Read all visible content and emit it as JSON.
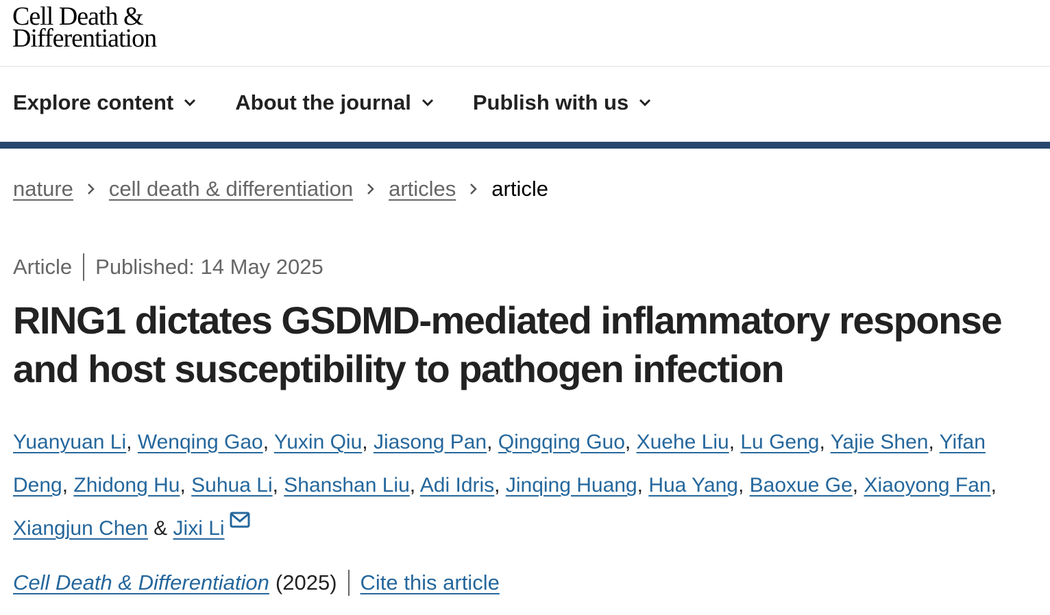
{
  "header": {
    "logo_line1": "Cell Death &",
    "logo_line2": "Differentiation"
  },
  "nav": [
    {
      "label": "Explore content"
    },
    {
      "label": "About the journal"
    },
    {
      "label": "Publish with us"
    }
  ],
  "colors": {
    "accent_bar": "#28476f",
    "link": "#25679c",
    "text": "#222222",
    "muted": "#666666"
  },
  "breadcrumb": [
    {
      "label": "nature"
    },
    {
      "label": "cell death & differentiation"
    },
    {
      "label": "articles"
    },
    {
      "label": "article"
    }
  ],
  "article": {
    "type": "Article",
    "published": "Published: 14 May 2025",
    "title": "RING1 dictates GSDMD-mediated inflammatory response and host susceptibility to pathogen infection",
    "authors": [
      "Yuanyuan Li",
      "Wenqing Gao",
      "Yuxin Qiu",
      "Jiasong Pan",
      "Qingqing Guo",
      "Xuehe Liu",
      "Lu Geng",
      "Yajie Shen",
      "Yifan Deng",
      "Zhidong Hu",
      "Suhua Li",
      "Shanshan Liu",
      "Adi Idris",
      "Jinqing Huang",
      "Hua Yang",
      "Baoxue Ge",
      "Xiaoyong Fan",
      "Xiangjun Chen",
      "Jixi Li"
    ],
    "author_joiner": "&",
    "journal": "Cell Death & Differentiation",
    "year": "(2025)",
    "cite_label": "Cite this article"
  }
}
